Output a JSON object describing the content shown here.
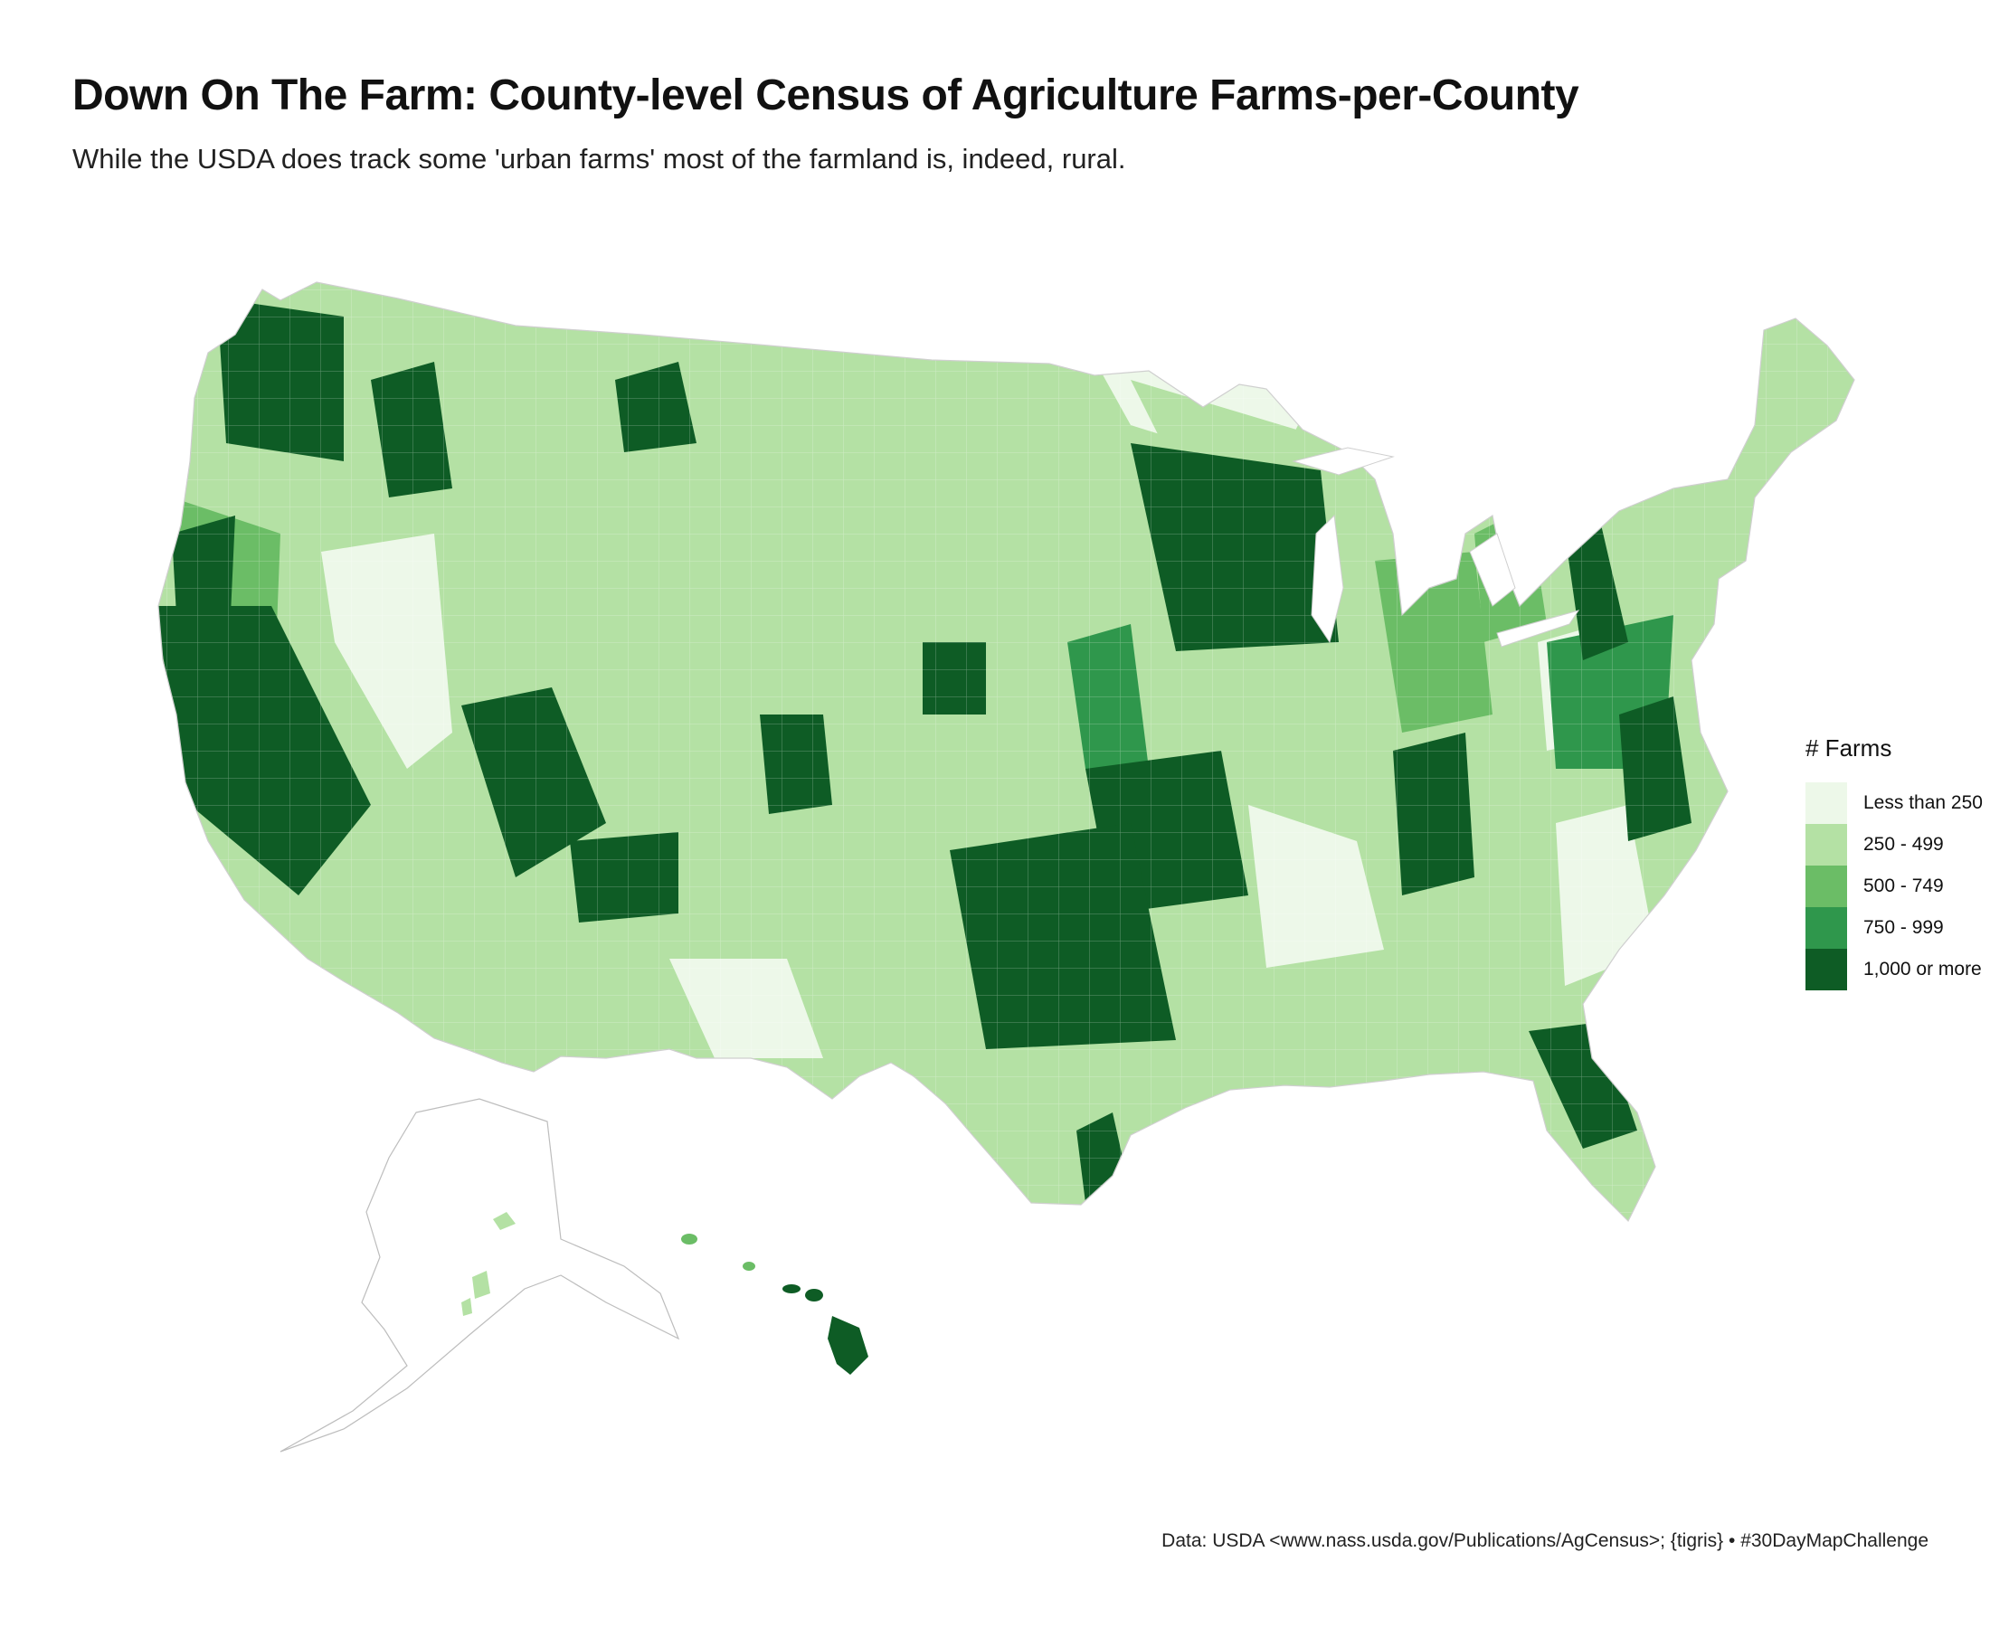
{
  "title": "Down On The Farm: County-level Census of Agriculture Farms-per-County",
  "subtitle": "While the USDA does track some 'urban farms' most of the farmland is, indeed, rural.",
  "legend": {
    "title": "# Farms",
    "items": [
      {
        "label": "Less than 250",
        "color": "#edf8e9"
      },
      {
        "label": "250 - 499",
        "color": "#b4e1a4"
      },
      {
        "label": "500 - 749",
        "color": "#6bbd66"
      },
      {
        "label": "750 - 999",
        "color": "#2f974c"
      },
      {
        "label": "1,000 or more",
        "color": "#0e5c25"
      }
    ]
  },
  "caption": "Data: USDA <www.nass.usda.gov/Publications/AgCensus>; {tigris} • #30DayMapChallenge",
  "palette": {
    "border": "#cfcfcf",
    "alaska_outline": "#bdbdbd"
  }
}
